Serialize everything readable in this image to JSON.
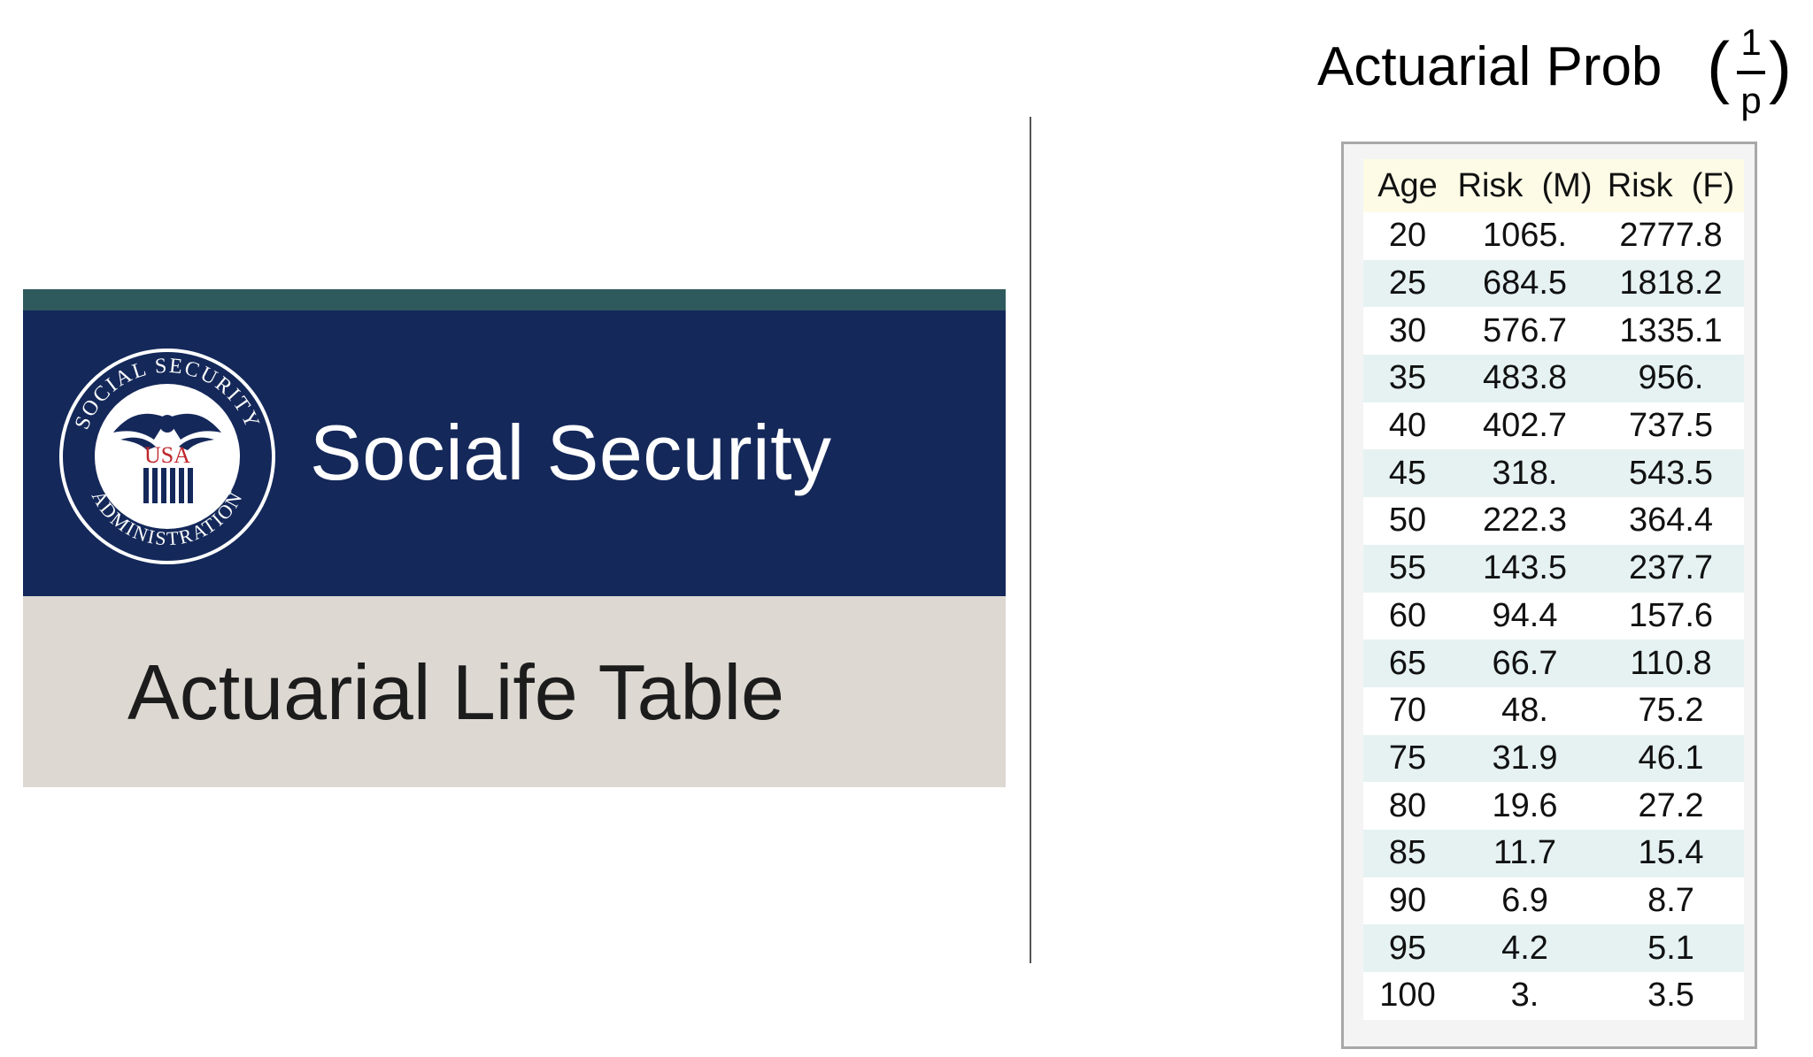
{
  "banner": {
    "seal_text_top": "SOCIAL SECURITY",
    "seal_text_bottom": "ADMINISTRATION",
    "seal_center": "USA",
    "brand": "Social Security",
    "subtitle": "Actuarial Life Table",
    "colors": {
      "strip": "#2f5a5d",
      "navy": "#14285a",
      "beige": "#ddd8d2",
      "seal_red": "#c0262d"
    }
  },
  "header": {
    "title": "Actuarial Prob",
    "fraction_numerator": "1",
    "fraction_denominator": "p",
    "paren_open": "(",
    "paren_close": ")"
  },
  "table": {
    "columns": [
      "Age",
      "Risk  (M)",
      "Risk  (F)"
    ],
    "rows": [
      [
        "20",
        "1065.",
        "2777.8"
      ],
      [
        "25",
        "684.5",
        "1818.2"
      ],
      [
        "30",
        "576.7",
        "1335.1"
      ],
      [
        "35",
        "483.8",
        "956."
      ],
      [
        "40",
        "402.7",
        "737.5"
      ],
      [
        "45",
        "318.",
        "543.5"
      ],
      [
        "50",
        "222.3",
        "364.4"
      ],
      [
        "55",
        "143.5",
        "237.7"
      ],
      [
        "60",
        "94.4",
        "157.6"
      ],
      [
        "65",
        "66.7",
        "110.8"
      ],
      [
        "70",
        "48.",
        "75.2"
      ],
      [
        "75",
        "31.9",
        "46.1"
      ],
      [
        "80",
        "19.6",
        "27.2"
      ],
      [
        "85",
        "11.7",
        "15.4"
      ],
      [
        "90",
        "6.9",
        "8.7"
      ],
      [
        "95",
        "4.2",
        "5.1"
      ],
      [
        "100",
        "3.",
        "3.5"
      ]
    ],
    "colors": {
      "header_bg": "#fdfbe6",
      "stripe_bg": "#e6f2f2"
    }
  }
}
